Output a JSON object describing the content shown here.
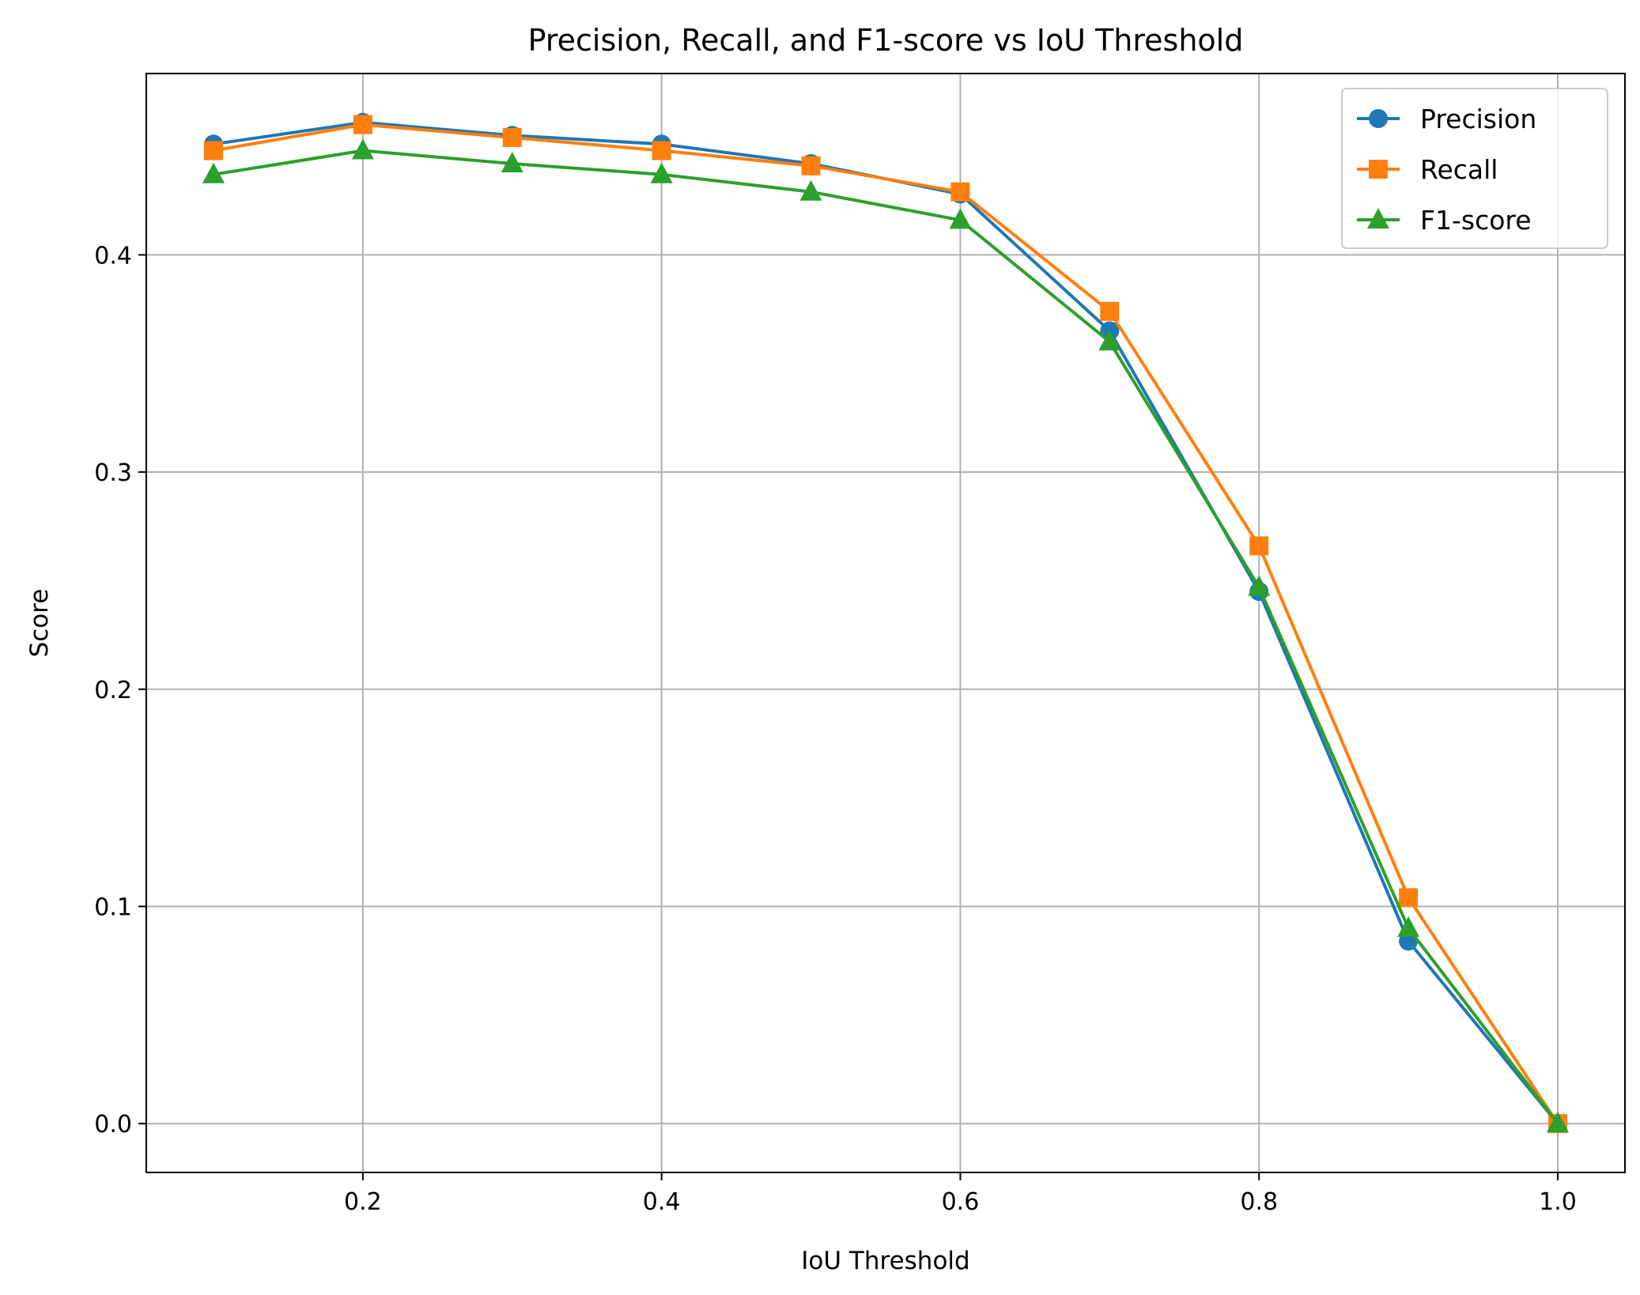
{
  "chart_data": {
    "type": "line",
    "title": "Precision, Recall, and F1-score vs IoU Threshold",
    "xlabel": "IoU Threshold",
    "ylabel": "Score",
    "x": [
      0.1,
      0.2,
      0.3,
      0.4,
      0.5,
      0.6,
      0.7,
      0.8,
      0.9,
      1.0
    ],
    "xlim": [
      0.055,
      1.045
    ],
    "ylim": [
      -0.0225,
      0.4835
    ],
    "xticks": [
      0.2,
      0.4,
      0.6,
      0.8,
      1.0
    ],
    "xtick_labels": [
      "0.2",
      "0.4",
      "0.6",
      "0.8",
      "1.0"
    ],
    "yticks": [
      0.0,
      0.1,
      0.2,
      0.3,
      0.4
    ],
    "ytick_labels": [
      "0.0",
      "0.1",
      "0.2",
      "0.3",
      "0.4"
    ],
    "grid": true,
    "legend_position": "top-right",
    "series": [
      {
        "name": "Precision",
        "color": "#1f77b4",
        "marker": "circle",
        "values": [
          0.451,
          0.461,
          0.455,
          0.451,
          0.442,
          0.428,
          0.365,
          0.245,
          0.084,
          0.0
        ]
      },
      {
        "name": "Recall",
        "color": "#ff7f0e",
        "marker": "square",
        "values": [
          0.448,
          0.46,
          0.454,
          0.448,
          0.441,
          0.429,
          0.374,
          0.266,
          0.104,
          0.0
        ]
      },
      {
        "name": "F1-score",
        "color": "#2ca02c",
        "marker": "triangle",
        "values": [
          0.437,
          0.448,
          0.442,
          0.437,
          0.429,
          0.416,
          0.36,
          0.247,
          0.09,
          0.0
        ]
      }
    ]
  }
}
